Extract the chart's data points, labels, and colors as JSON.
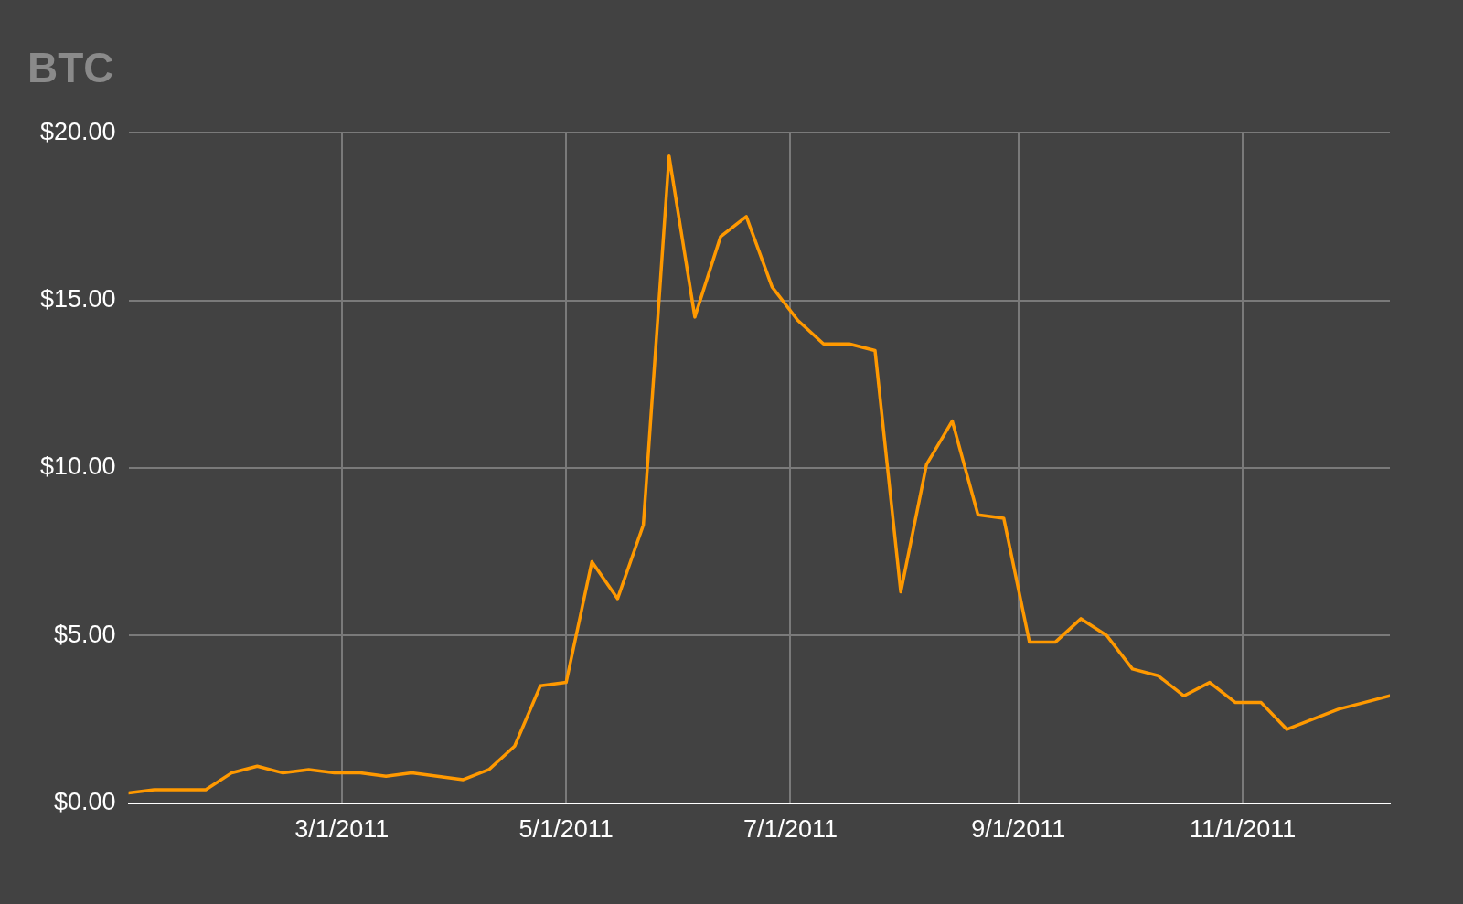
{
  "chart_data": {
    "type": "line",
    "title": "BTC",
    "x": [
      "2011-01-02",
      "2011-01-09",
      "2011-01-16",
      "2011-01-23",
      "2011-01-30",
      "2011-02-06",
      "2011-02-13",
      "2011-02-20",
      "2011-02-27",
      "2011-03-06",
      "2011-03-13",
      "2011-03-20",
      "2011-03-27",
      "2011-04-03",
      "2011-04-10",
      "2011-04-17",
      "2011-04-24",
      "2011-05-01",
      "2011-05-08",
      "2011-05-15",
      "2011-05-22",
      "2011-05-29",
      "2011-06-05",
      "2011-06-12",
      "2011-06-19",
      "2011-06-26",
      "2011-07-03",
      "2011-07-10",
      "2011-07-17",
      "2011-07-24",
      "2011-07-31",
      "2011-08-07",
      "2011-08-14",
      "2011-08-21",
      "2011-08-28",
      "2011-09-04",
      "2011-09-11",
      "2011-09-18",
      "2011-09-25",
      "2011-10-02",
      "2011-10-09",
      "2011-10-16",
      "2011-10-23",
      "2011-10-30",
      "2011-11-06",
      "2011-11-13",
      "2011-11-20",
      "2011-11-27",
      "2011-12-04",
      "2011-12-11"
    ],
    "series": [
      {
        "color": "#ff9900",
        "values": [
          0.3,
          0.4,
          0.4,
          0.4,
          0.9,
          1.1,
          0.9,
          1.0,
          0.9,
          0.9,
          0.8,
          0.9,
          0.8,
          0.7,
          1.0,
          1.7,
          3.5,
          3.6,
          7.2,
          6.1,
          8.3,
          19.3,
          14.5,
          16.9,
          17.5,
          15.4,
          14.4,
          13.7,
          13.7,
          13.5,
          6.3,
          10.1,
          11.4,
          8.6,
          8.5,
          4.8,
          4.8,
          5.5,
          5.0,
          4.0,
          3.8,
          3.2,
          3.6,
          3.0,
          3.0,
          2.2,
          2.5,
          2.8,
          3.0,
          3.2
        ]
      }
    ],
    "xlim": [
      "2011-01-02",
      "2011-12-11"
    ],
    "xticks": [
      {
        "value": "2011-03-01",
        "label": "3/1/2011"
      },
      {
        "value": "2011-05-01",
        "label": "5/1/2011"
      },
      {
        "value": "2011-07-01",
        "label": "7/1/2011"
      },
      {
        "value": "2011-09-01",
        "label": "9/1/2011"
      },
      {
        "value": "2011-11-01",
        "label": "11/1/2011"
      }
    ],
    "ylim": [
      0,
      20
    ],
    "yticks": [
      {
        "value": 0,
        "label": "$0.00"
      },
      {
        "value": 5,
        "label": "$5.00"
      },
      {
        "value": 10,
        "label": "$10.00"
      },
      {
        "value": 15,
        "label": "$15.00"
      },
      {
        "value": 20,
        "label": "$20.00"
      }
    ],
    "grid": true,
    "legend": false,
    "marker": "none",
    "line_style": "solid"
  }
}
